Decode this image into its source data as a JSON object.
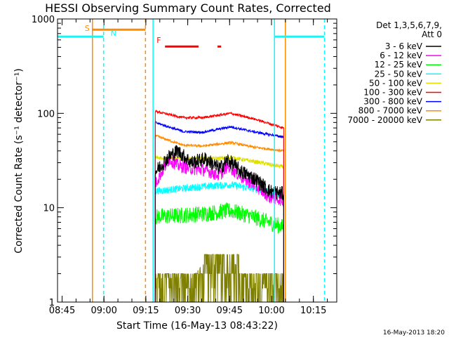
{
  "chart_data": {
    "type": "line",
    "title": "HESSI Observing Summary Count Rates, Corrected",
    "xlabel": "Start Time (16-May-13 08:43:22)",
    "ylabel": "Corrected Count Rate (s⁻¹ detector⁻¹)",
    "footer_timestamp": "16-May-2013 18:20",
    "y_scale": "log",
    "ylim": [
      1,
      1000
    ],
    "y_ticks": [
      {
        "value": 1,
        "label": "1"
      },
      {
        "value": 10,
        "label": "10"
      },
      {
        "value": 100,
        "label": "100"
      },
      {
        "value": 1000,
        "label": "1000"
      }
    ],
    "x_unit": "minutes since 08:43:22",
    "xlim": [
      0,
      100
    ],
    "x_ticks": [
      {
        "value": 1.63,
        "label": "08:45"
      },
      {
        "value": 16.63,
        "label": "09:00"
      },
      {
        "value": 31.63,
        "label": "09:15"
      },
      {
        "value": 46.63,
        "label": "09:30"
      },
      {
        "value": 61.63,
        "label": "09:45"
      },
      {
        "value": 76.63,
        "label": "10:00"
      },
      {
        "value": 91.63,
        "label": "10:15"
      }
    ],
    "legend": {
      "placement": "right",
      "header": [
        "Det 1,3,5,6,7,9,",
        "Att 0"
      ]
    },
    "data_start": 35,
    "data_end": 81,
    "series": [
      {
        "name": "3 - 6 keV",
        "color": "#000000",
        "values_at": [
          [
            35,
            24
          ],
          [
            40,
            35
          ],
          [
            43,
            40
          ],
          [
            48,
            30
          ],
          [
            53,
            33
          ],
          [
            58,
            26
          ],
          [
            61,
            32
          ],
          [
            66,
            24
          ],
          [
            71,
            20
          ],
          [
            76,
            15
          ],
          [
            81,
            14
          ]
        ],
        "noise": 0.18
      },
      {
        "name": "6 - 12 keV",
        "color": "#ff00ff",
        "values_at": [
          [
            35,
            18
          ],
          [
            40,
            33
          ],
          [
            43,
            28
          ],
          [
            48,
            26
          ],
          [
            53,
            25
          ],
          [
            58,
            22
          ],
          [
            61,
            28
          ],
          [
            66,
            21
          ],
          [
            71,
            17
          ],
          [
            76,
            13
          ],
          [
            81,
            12
          ]
        ],
        "noise": 0.16
      },
      {
        "name": "12 - 25 keV",
        "color": "#00ff00",
        "values_at": [
          [
            35,
            8
          ],
          [
            45,
            8.3
          ],
          [
            55,
            8.8
          ],
          [
            62,
            9.3
          ],
          [
            70,
            8
          ],
          [
            81,
            6.2
          ]
        ],
        "noise": 0.2
      },
      {
        "name": "25 - 50 keV",
        "color": "#00ffff",
        "values_at": [
          [
            35,
            15
          ],
          [
            45,
            16
          ],
          [
            55,
            17
          ],
          [
            62,
            17.5
          ],
          [
            70,
            16
          ],
          [
            81,
            13.5
          ]
        ],
        "noise": 0.09
      },
      {
        "name": "50 - 100 keV",
        "color": "#e0e000",
        "values_at": [
          [
            35,
            34
          ],
          [
            45,
            33
          ],
          [
            55,
            33
          ],
          [
            62,
            34
          ],
          [
            70,
            31
          ],
          [
            81,
            27
          ]
        ],
        "noise": 0.05
      },
      {
        "name": "100 - 300 keV",
        "color": "#ff0000",
        "values_at": [
          [
            35,
            105
          ],
          [
            45,
            90
          ],
          [
            52,
            90
          ],
          [
            62,
            100
          ],
          [
            70,
            88
          ],
          [
            81,
            70
          ]
        ],
        "noise": 0.03
      },
      {
        "name": "300 - 800 keV",
        "color": "#0000ff",
        "values_at": [
          [
            35,
            80
          ],
          [
            45,
            64
          ],
          [
            52,
            63
          ],
          [
            62,
            72
          ],
          [
            70,
            64
          ],
          [
            81,
            56
          ]
        ],
        "noise": 0.03
      },
      {
        "name": "800 - 7000 keV",
        "color": "#ff8c00",
        "values_at": [
          [
            35,
            58
          ],
          [
            45,
            46
          ],
          [
            52,
            45
          ],
          [
            62,
            49
          ],
          [
            70,
            44
          ],
          [
            81,
            40
          ]
        ],
        "noise": 0.03
      },
      {
        "name": "7000 - 20000 keV",
        "color": "#808000",
        "values_at": [
          [
            35,
            1.8
          ],
          [
            48,
            1.8
          ],
          [
            52,
            2.5
          ],
          [
            65,
            2.5
          ],
          [
            68,
            1.6
          ],
          [
            81,
            1.5
          ]
        ],
        "noise": 0.35
      }
    ],
    "annotations": [
      {
        "label": "S",
        "color": "#ff8c00",
        "x_line": 12.5,
        "bar_x": [
          12.5,
          31.5
        ],
        "bar_y": 770,
        "line_style": "solid"
      },
      {
        "label": "N",
        "color": "#00ffff",
        "x_line": 16.5,
        "bar_x": [
          0,
          16.5
        ],
        "bar_y": 650,
        "line_style": "dashed"
      },
      {
        "label": "F",
        "color": "#ff0000",
        "bar_x": [
          38.5,
          50.5
        ],
        "bar_y": 510,
        "extra_bar_x": [
          57.3,
          58.6
        ]
      }
    ],
    "vertical_markers": [
      {
        "x": 12.5,
        "color": "#ff8c00",
        "style": "solid"
      },
      {
        "x": 16.5,
        "color": "#00ffff",
        "style": "dashed"
      },
      {
        "x": 31.5,
        "color": "#ff8c00",
        "style": "dashed"
      },
      {
        "x": 34.2,
        "color": "#00ffff",
        "style": "solid"
      },
      {
        "x": 77.7,
        "color": "#00ffff",
        "style": "solid"
      },
      {
        "x": 81.6,
        "color": "#ff8c00",
        "style": "solid"
      },
      {
        "x": 95.6,
        "color": "#00ffff",
        "style": "dashed"
      }
    ],
    "attenuator_blocks": [
      {
        "x_range": [
          0,
          16.5
        ],
        "y": 650,
        "color": "#00ffff"
      },
      {
        "x_range": [
          77.7,
          95.6
        ],
        "y": 650,
        "color": "#00ffff"
      }
    ]
  }
}
